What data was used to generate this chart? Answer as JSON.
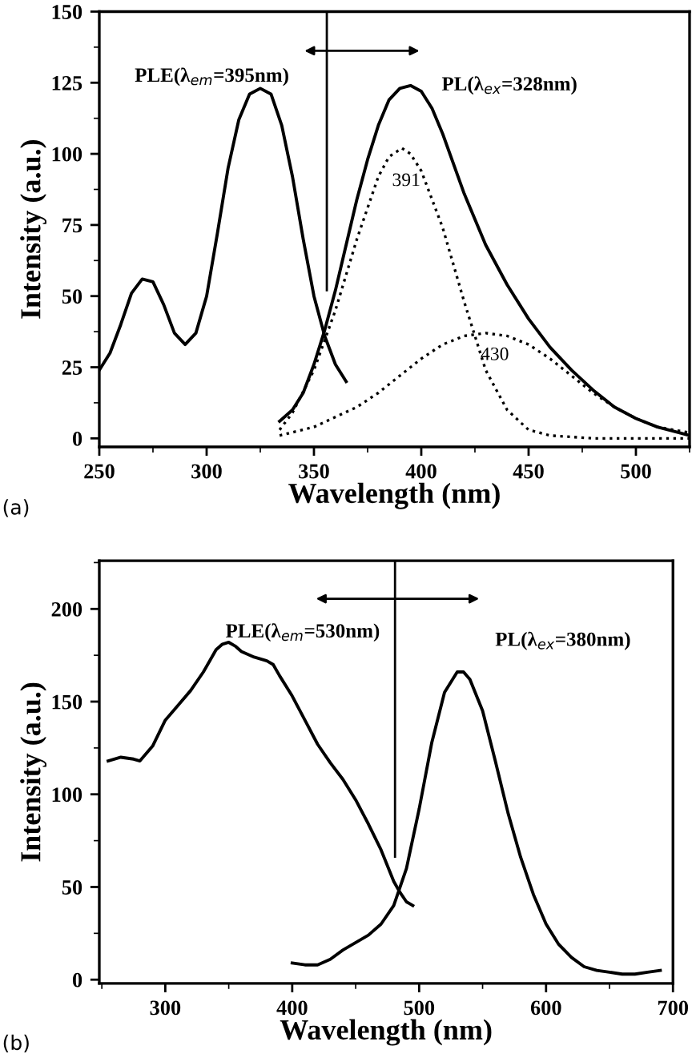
{
  "chart_data": [
    {
      "type": "line",
      "xlabel": "Wavelength (nm)",
      "ylabel": "Intensity (a.u.)",
      "xlim": [
        250,
        525
      ],
      "ylim": [
        -3,
        150
      ],
      "xticks": [
        250,
        300,
        350,
        400,
        450,
        500
      ],
      "yticks": [
        0,
        25,
        50,
        75,
        100,
        125,
        150
      ],
      "series": [
        {
          "name": "PLE(λ$_{em}$=395nm)",
          "color": "#000000",
          "line_style": "solid",
          "x": [
            250,
            255,
            260,
            265,
            270,
            275,
            280,
            285,
            290,
            295,
            300,
            305,
            310,
            315,
            320,
            325,
            330,
            335,
            340,
            345,
            350,
            355,
            360,
            365
          ],
          "values": [
            24,
            30,
            40,
            51,
            56,
            55,
            47,
            37,
            33,
            37,
            50,
            72,
            95,
            112,
            121,
            123,
            121,
            110,
            92,
            70,
            50,
            36,
            26,
            20
          ]
        },
        {
          "name": "PL(λ$_{ex}$=328nm)",
          "color": "#000000",
          "line_style": "solid",
          "x": [
            334,
            340,
            345,
            350,
            355,
            360,
            365,
            370,
            375,
            380,
            385,
            390,
            395,
            400,
            405,
            410,
            420,
            430,
            440,
            450,
            460,
            470,
            480,
            490,
            500,
            510,
            520,
            525
          ],
          "values": [
            6,
            10,
            16,
            26,
            38,
            52,
            68,
            84,
            98,
            110,
            119,
            123,
            124,
            122,
            116,
            107,
            86,
            68,
            54,
            42,
            32,
            24,
            17,
            11,
            7,
            4,
            2,
            1
          ]
        },
        {
          "color": "#000000",
          "line_style": "dotted",
          "x": [
            334,
            340,
            350,
            360,
            370,
            380,
            385,
            391,
            395,
            400,
            410,
            420,
            430,
            440,
            450,
            460,
            480,
            525
          ],
          "values": [
            3,
            9,
            24,
            45,
            70,
            92,
            99,
            102,
            100,
            94,
            74,
            48,
            24,
            10,
            3,
            1,
            0,
            0
          ]
        },
        {
          "color": "#000000",
          "line_style": "dotted",
          "x": [
            334,
            350,
            370,
            380,
            390,
            400,
            410,
            420,
            430,
            440,
            450,
            460,
            470,
            480,
            490,
            500,
            510,
            525
          ],
          "values": [
            1,
            4,
            11,
            16,
            22,
            28,
            33,
            36,
            37,
            36,
            33,
            28,
            22,
            16,
            11,
            7,
            4,
            2
          ]
        }
      ],
      "ref_lines": [
        {
          "axis": "x",
          "value": 356,
          "color": "#000000"
        }
      ],
      "annotations": [
        "(a)",
        "391",
        "430"
      ]
    },
    {
      "type": "line",
      "xlabel": "Wavelength (nm)",
      "ylabel": "Intensity (a.u.)",
      "xlim": [
        248,
        700
      ],
      "ylim": [
        -2,
        226
      ],
      "xticks": [
        300,
        400,
        500,
        600,
        700
      ],
      "yticks": [
        0,
        50,
        100,
        150,
        200
      ],
      "series": [
        {
          "name": "PLE(λ$_{em}$=530nm)",
          "color": "#000000",
          "line_style": "solid",
          "x": [
            255,
            265,
            275,
            280,
            290,
            300,
            310,
            320,
            330,
            340,
            345,
            350,
            355,
            360,
            370,
            380,
            385,
            390,
            400,
            410,
            420,
            430,
            440,
            450,
            460,
            470,
            480,
            485,
            490,
            495
          ],
          "values": [
            118,
            120,
            119,
            118,
            126,
            140,
            148,
            156,
            166,
            178,
            181,
            182,
            180,
            177,
            174,
            172,
            170,
            164,
            153,
            140,
            127,
            117,
            108,
            97,
            84,
            70,
            53,
            47,
            42,
            40
          ]
        },
        {
          "name": "PL(λ$_{ex}$=380nm)",
          "color": "#000000",
          "line_style": "solid",
          "x": [
            400,
            410,
            420,
            430,
            440,
            450,
            460,
            470,
            480,
            490,
            500,
            510,
            520,
            530,
            535,
            540,
            550,
            560,
            570,
            580,
            590,
            600,
            610,
            620,
            630,
            640,
            650,
            660,
            670,
            680,
            690
          ],
          "values": [
            9,
            8,
            8,
            11,
            16,
            20,
            24,
            30,
            40,
            60,
            92,
            128,
            155,
            166,
            166,
            162,
            145,
            118,
            90,
            66,
            46,
            30,
            19,
            12,
            7,
            5,
            4,
            3,
            3,
            4,
            5
          ]
        }
      ],
      "ref_lines": [
        {
          "axis": "x",
          "value": 481,
          "color": "#000000"
        }
      ],
      "annotations": [
        "(b)"
      ]
    }
  ]
}
